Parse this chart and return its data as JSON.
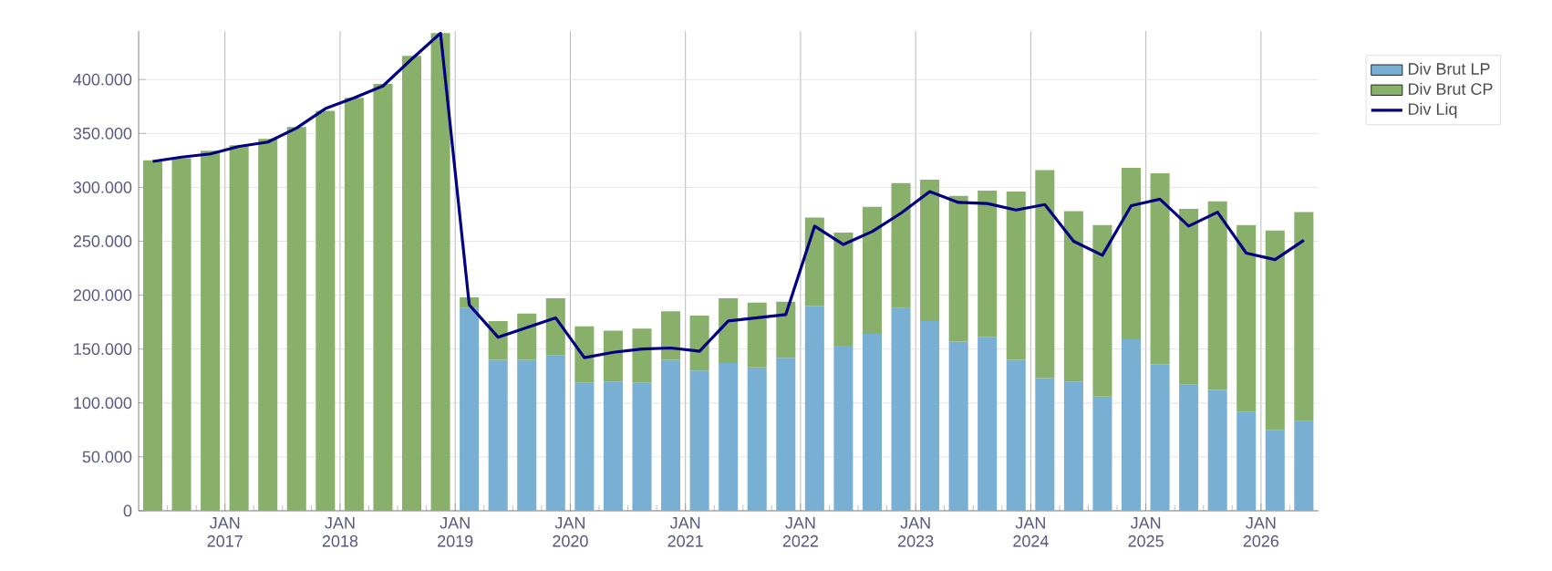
{
  "chart_data": {
    "type": "bar",
    "stacked": true,
    "grid": true,
    "legend": "top right",
    "x": [
      "2016-05-15",
      "2016-08-15",
      "2016-11-15",
      "2017-02-15",
      "2017-05-15",
      "2017-08-15",
      "2017-11-15",
      "2018-02-15",
      "2018-05-15",
      "2018-08-15",
      "2018-11-15",
      "2019-02-15",
      "2019-05-15",
      "2019-08-15",
      "2019-11-15",
      "2020-02-15",
      "2020-05-15",
      "2020-08-15",
      "2020-11-15",
      "2021-02-15",
      "2021-05-15",
      "2021-08-15",
      "2021-11-15",
      "2022-02-15",
      "2022-05-15",
      "2022-08-15",
      "2022-11-15",
      "2023-02-15",
      "2023-05-15",
      "2023-08-15",
      "2023-11-15",
      "2024-02-15",
      "2024-05-15",
      "2024-08-15",
      "2024-11-15",
      "2025-02-15",
      "2025-05-15",
      "2025-08-15",
      "2025-11-15",
      "2026-02-15",
      "2026-05-15"
    ],
    "series": [
      {
        "name": "Div Brut LP",
        "color": "#78afd3",
        "values": [
          0,
          0,
          0,
          0,
          0,
          0,
          0,
          0,
          0,
          0,
          0,
          188000,
          140000,
          140000,
          144000,
          119000,
          120000,
          119000,
          140000,
          130000,
          137000,
          133000,
          142000,
          190000,
          153000,
          164000,
          188000,
          176000,
          157000,
          161000,
          140000,
          123000,
          120000,
          106000,
          159000,
          136000,
          117000,
          112000,
          92000,
          75000,
          83000
        ]
      },
      {
        "name": "Div Brut CP",
        "color": "#88b06a",
        "values": [
          325000,
          327000,
          334000,
          339000,
          345000,
          356000,
          371000,
          383000,
          396000,
          422000,
          443000,
          10000,
          36000,
          43000,
          53000,
          52000,
          47000,
          50000,
          45000,
          51000,
          60000,
          60000,
          52000,
          82000,
          105000,
          118000,
          116000,
          131000,
          135000,
          136000,
          156000,
          193000,
          158000,
          159000,
          159000,
          177000,
          163000,
          175000,
          173000,
          185000,
          194000
        ]
      },
      {
        "name": "Div Liq",
        "type": "line",
        "color": "#000080",
        "values": [
          324000,
          328000,
          331000,
          338000,
          342000,
          355000,
          373000,
          383000,
          394000,
          419000,
          443000,
          191000,
          161000,
          170000,
          179000,
          142000,
          147000,
          150000,
          151000,
          148000,
          176000,
          179000,
          182000,
          264000,
          247000,
          259000,
          276000,
          296000,
          286000,
          285000,
          279000,
          284000,
          250000,
          237000,
          283000,
          289000,
          264000,
          277000,
          239000,
          233000,
          251000
        ]
      }
    ],
    "xlim": [
      "2016-04",
      "2026-07"
    ],
    "xticks": [
      {
        "value": "2016-07",
        "label": null
      },
      {
        "value": "2016-10",
        "label": null
      },
      {
        "value": "2017-01",
        "label": "JAN 2017"
      },
      {
        "value": "2017-04",
        "label": null
      },
      {
        "value": "2017-07",
        "label": null
      },
      {
        "value": "2017-10",
        "label": null
      },
      {
        "value": "2018-01",
        "label": "JAN 2018"
      },
      {
        "value": "2018-04",
        "label": null
      },
      {
        "value": "2018-07",
        "label": null
      },
      {
        "value": "2018-10",
        "label": null
      },
      {
        "value": "2019-01",
        "label": "JAN 2019"
      },
      {
        "value": "2019-04",
        "label": null
      },
      {
        "value": "2019-07",
        "label": null
      },
      {
        "value": "2019-10",
        "label": null
      },
      {
        "value": "2020-01",
        "label": "JAN 2020"
      },
      {
        "value": "2020-04",
        "label": null
      },
      {
        "value": "2020-07",
        "label": null
      },
      {
        "value": "2020-10",
        "label": null
      },
      {
        "value": "2021-01",
        "label": "JAN 2021"
      },
      {
        "value": "2021-04",
        "label": null
      },
      {
        "value": "2021-07",
        "label": null
      },
      {
        "value": "2021-10",
        "label": null
      },
      {
        "value": "2022-01",
        "label": "JAN 2022"
      },
      {
        "value": "2022-04",
        "label": null
      },
      {
        "value": "2022-07",
        "label": null
      },
      {
        "value": "2022-10",
        "label": null
      },
      {
        "value": "2023-01",
        "label": "JAN 2023"
      },
      {
        "value": "2023-04",
        "label": null
      },
      {
        "value": "2023-07",
        "label": null
      },
      {
        "value": "2023-10",
        "label": null
      },
      {
        "value": "2024-01",
        "label": "JAN 2024"
      },
      {
        "value": "2024-04",
        "label": null
      },
      {
        "value": "2024-07",
        "label": null
      },
      {
        "value": "2024-10",
        "label": null
      },
      {
        "value": "2025-01",
        "label": "JAN 2025"
      },
      {
        "value": "2025-04",
        "label": null
      },
      {
        "value": "2025-07",
        "label": null
      },
      {
        "value": "2025-10",
        "label": null
      },
      {
        "value": "2026-01",
        "label": "JAN 2026"
      },
      {
        "value": "2026-04",
        "label": null
      }
    ],
    "ylim": [
      0,
      445000
    ],
    "yticks": [
      0,
      {
        "value": 50000,
        "label": "50.000"
      },
      {
        "value": 100000,
        "label": "100.000"
      },
      {
        "value": 150000,
        "label": "150.000"
      },
      {
        "value": 200000,
        "label": "200.000"
      },
      {
        "value": 250000,
        "label": "250.000"
      },
      {
        "value": 300000,
        "label": "300.000"
      },
      {
        "value": 350000,
        "label": "350.000"
      },
      {
        "value": 400000,
        "label": "400.000"
      }
    ]
  }
}
